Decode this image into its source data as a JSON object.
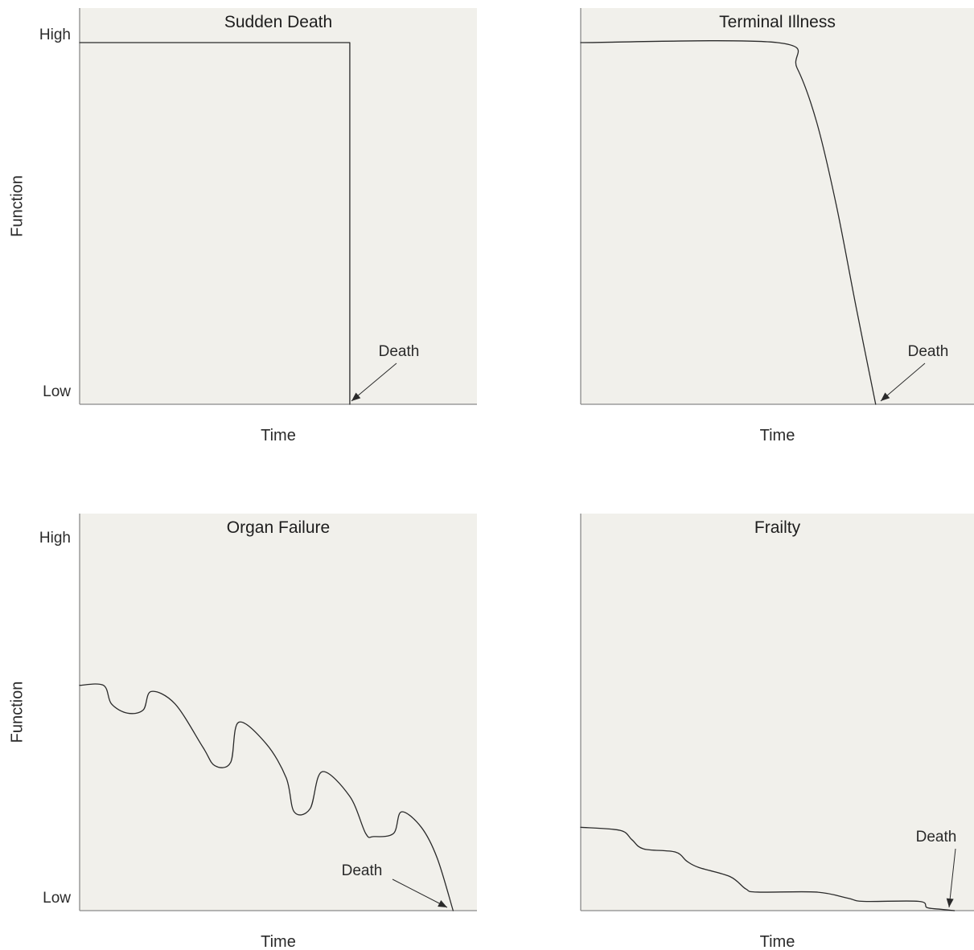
{
  "chart_data": [
    {
      "type": "line",
      "title": "Sudden Death",
      "xlabel": "Time",
      "ylabel": "Function",
      "ytick_labels": [
        "High",
        "Low"
      ],
      "ylim": [
        0,
        1
      ],
      "xlim": [
        0,
        1
      ],
      "annotation": "Death",
      "series": [
        {
          "x": [
            0,
            0.68,
            0.68
          ],
          "y": [
            1,
            1,
            0
          ]
        }
      ]
    },
    {
      "type": "line",
      "title": "Terminal Illness",
      "xlabel": "Time",
      "ylabel": "",
      "ytick_labels": [],
      "ylim": [
        0,
        1
      ],
      "xlim": [
        0,
        1
      ],
      "annotation": "Death",
      "series": [
        {
          "x": [
            0,
            0.5,
            0.55,
            0.6,
            0.65,
            0.7,
            0.75
          ],
          "y": [
            1,
            1,
            0.93,
            0.78,
            0.55,
            0.27,
            0
          ]
        }
      ]
    },
    {
      "type": "line",
      "title": "Organ Failure",
      "xlabel": "Time",
      "ylabel": "Function",
      "ytick_labels": [
        "High",
        "Low"
      ],
      "ylim": [
        0,
        1
      ],
      "xlim": [
        0,
        1
      ],
      "annotation": "Death",
      "series": [
        {
          "x": [
            0,
            0.06,
            0.08,
            0.12,
            0.16,
            0.18,
            0.24,
            0.31,
            0.34,
            0.38,
            0.4,
            0.47,
            0.52,
            0.54,
            0.58,
            0.61,
            0.68,
            0.72,
            0.74,
            0.79,
            0.81,
            0.86,
            0.9,
            0.94
          ],
          "y": [
            0.73,
            0.73,
            0.67,
            0.64,
            0.65,
            0.71,
            0.67,
            0.53,
            0.47,
            0.48,
            0.61,
            0.54,
            0.43,
            0.32,
            0.33,
            0.45,
            0.37,
            0.25,
            0.24,
            0.25,
            0.32,
            0.27,
            0.17,
            0
          ]
        }
      ]
    },
    {
      "type": "line",
      "title": "Frailty",
      "xlabel": "Time",
      "ylabel": "",
      "ytick_labels": [],
      "ylim": [
        0,
        1
      ],
      "xlim": [
        0,
        1
      ],
      "annotation": "Death",
      "series": [
        {
          "x": [
            0,
            0.1,
            0.13,
            0.16,
            0.24,
            0.27,
            0.3,
            0.38,
            0.42,
            0.45,
            0.6,
            0.68,
            0.72,
            0.86,
            0.88,
            0.91,
            0.95
          ],
          "y": [
            0.27,
            0.26,
            0.23,
            0.2,
            0.19,
            0.16,
            0.14,
            0.11,
            0.07,
            0.06,
            0.06,
            0.04,
            0.03,
            0.03,
            0.01,
            0.005,
            0
          ]
        }
      ]
    }
  ]
}
